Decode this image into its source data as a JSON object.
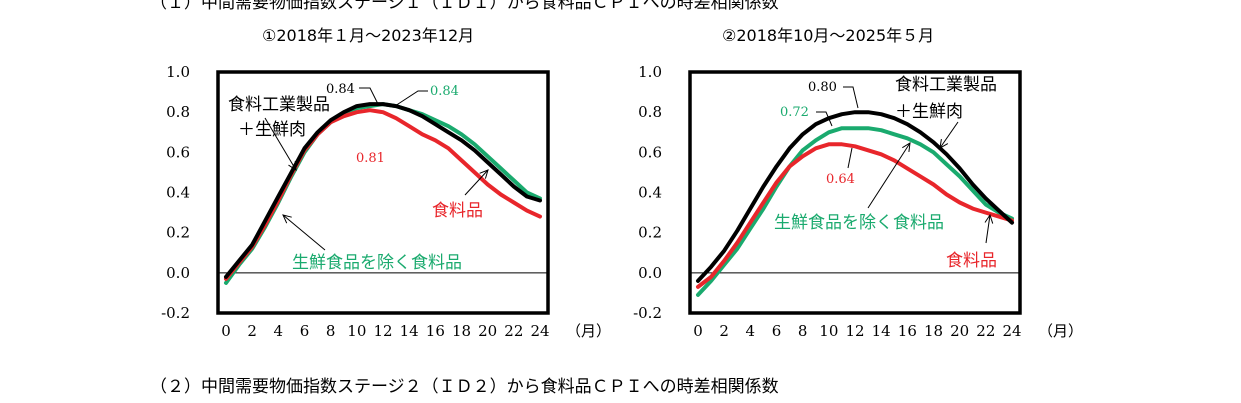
{
  "header_top": "（１）中間需要物価指数ステージ１（ＩＤ１）から食料品ＣＰＩへの時差相関係数",
  "header_bottom": "（２）中間需要物価指数ステージ２（ＩＤ２）から食料品ＣＰＩへの時差相関係数",
  "colors": {
    "black": "#000000",
    "green": "#1aaa6e",
    "red": "#e8262b"
  },
  "chart_data": [
    {
      "type": "line",
      "title": "①2018年１月～2023年12月",
      "x": [
        0,
        1,
        2,
        3,
        4,
        5,
        6,
        7,
        8,
        9,
        10,
        11,
        12,
        13,
        14,
        15,
        16,
        17,
        18,
        19,
        20,
        21,
        22,
        23,
        24
      ],
      "xticks": [
        "0",
        "2",
        "4",
        "6",
        "8",
        "10",
        "12",
        "14",
        "16",
        "18",
        "20",
        "22",
        "24"
      ],
      "xunit": "（月）",
      "yticks": [
        "1.0",
        "0.8",
        "0.6",
        "0.4",
        "0.2",
        "0.0",
        "-0.2"
      ],
      "ylim": [
        -0.2,
        1.0
      ],
      "series": [
        {
          "name": "食料工業製品＋生鮮肉",
          "color": "#000000",
          "values": [
            -0.02,
            0.06,
            0.14,
            0.26,
            0.38,
            0.5,
            0.62,
            0.7,
            0.76,
            0.8,
            0.83,
            0.84,
            0.84,
            0.83,
            0.81,
            0.78,
            0.74,
            0.7,
            0.66,
            0.61,
            0.55,
            0.49,
            0.43,
            0.38,
            0.36
          ]
        },
        {
          "name": "生鮮食品を除く食料品",
          "color": "#1aaa6e",
          "values": [
            -0.05,
            0.04,
            0.12,
            0.23,
            0.35,
            0.48,
            0.6,
            0.69,
            0.75,
            0.79,
            0.82,
            0.83,
            0.84,
            0.83,
            0.81,
            0.79,
            0.76,
            0.73,
            0.69,
            0.64,
            0.58,
            0.52,
            0.46,
            0.4,
            0.37
          ]
        },
        {
          "name": "食料品",
          "color": "#e8262b",
          "values": [
            -0.03,
            0.05,
            0.13,
            0.24,
            0.36,
            0.49,
            0.61,
            0.69,
            0.75,
            0.78,
            0.8,
            0.81,
            0.8,
            0.77,
            0.73,
            0.69,
            0.66,
            0.62,
            0.56,
            0.5,
            0.44,
            0.39,
            0.35,
            0.31,
            0.28
          ]
        }
      ],
      "annotations": [
        "0.84",
        "0.84",
        "0.81"
      ],
      "labels": {
        "black": [
          "食料工業製品",
          "＋生鮮肉"
        ],
        "green": "生鮮食品を除く食料品",
        "red": "食料品"
      }
    },
    {
      "type": "line",
      "title": "②2018年10月～2025年５月",
      "x": [
        0,
        1,
        2,
        3,
        4,
        5,
        6,
        7,
        8,
        9,
        10,
        11,
        12,
        13,
        14,
        15,
        16,
        17,
        18,
        19,
        20,
        21,
        22,
        23,
        24
      ],
      "xticks": [
        "0",
        "2",
        "4",
        "6",
        "8",
        "10",
        "12",
        "14",
        "16",
        "18",
        "20",
        "22",
        "24"
      ],
      "xunit": "（月）",
      "yticks": [
        "1.0",
        "0.8",
        "0.6",
        "0.4",
        "0.2",
        "0.0",
        "-0.2"
      ],
      "ylim": [
        -0.2,
        1.0
      ],
      "series": [
        {
          "name": "食料工業製品＋生鮮肉",
          "color": "#000000",
          "values": [
            -0.04,
            0.03,
            0.11,
            0.21,
            0.32,
            0.43,
            0.53,
            0.62,
            0.69,
            0.74,
            0.77,
            0.79,
            0.8,
            0.8,
            0.79,
            0.77,
            0.74,
            0.7,
            0.65,
            0.59,
            0.52,
            0.44,
            0.37,
            0.31,
            0.25
          ]
        },
        {
          "name": "生鮮食品を除く食料品",
          "color": "#1aaa6e",
          "values": [
            -0.11,
            -0.04,
            0.04,
            0.12,
            0.22,
            0.32,
            0.43,
            0.53,
            0.61,
            0.66,
            0.7,
            0.72,
            0.72,
            0.72,
            0.71,
            0.69,
            0.67,
            0.64,
            0.6,
            0.54,
            0.48,
            0.41,
            0.34,
            0.3,
            0.27
          ]
        },
        {
          "name": "食料品",
          "color": "#e8262b",
          "values": [
            -0.07,
            -0.02,
            0.06,
            0.15,
            0.25,
            0.35,
            0.45,
            0.53,
            0.58,
            0.62,
            0.64,
            0.64,
            0.63,
            0.61,
            0.59,
            0.56,
            0.52,
            0.48,
            0.44,
            0.39,
            0.35,
            0.32,
            0.3,
            0.28,
            0.26
          ]
        }
      ],
      "annotations": [
        "0.80",
        "0.72",
        "0.64"
      ],
      "labels": {
        "black": [
          "食料工業製品",
          "＋生鮮肉"
        ],
        "green": "生鮮食品を除く食料品",
        "red": "食料品"
      }
    }
  ]
}
